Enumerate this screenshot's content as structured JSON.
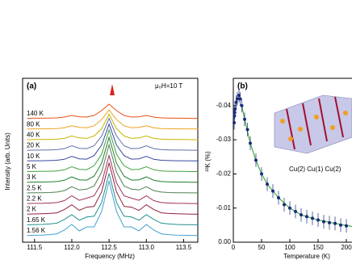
{
  "chart_data": [
    {
      "type": "line",
      "panel_label": "(a)",
      "annotation": "μ₀H=10 T",
      "x_label": "Frequency (MHz)",
      "y_label": "Intensity (arb. Units)",
      "xlim": [
        111.34,
        113.69
      ],
      "xticks": [
        111.5,
        {
          "value": 112.0,
          "label": "112.0"
        },
        112.5,
        {
          "value": 113.0,
          "label": "113.0"
        },
        113.5
      ],
      "x": [
        111.4,
        111.5,
        111.6,
        111.7,
        111.8,
        111.9,
        112.0,
        112.1,
        112.2,
        112.3,
        112.4,
        112.5,
        112.6,
        112.7,
        112.8,
        112.9,
        113.0,
        113.1,
        113.2,
        113.3,
        113.4,
        113.5,
        113.6,
        113.7
      ],
      "series": [
        {
          "name": "140 K",
          "color": "#e8501a",
          "values": [
            0.02,
            0.03,
            0.03,
            0.04,
            0.05,
            0.1,
            0.2,
            0.12,
            0.1,
            0.2,
            0.5,
            0.9,
            0.5,
            0.2,
            0.1,
            0.12,
            0.2,
            0.1,
            0.05,
            0.04,
            0.03,
            0.03,
            0.02,
            0.02
          ]
        },
        {
          "name": "80 K",
          "color": "#f0a020",
          "values": [
            0.02,
            0.03,
            0.03,
            0.04,
            0.05,
            0.1,
            0.22,
            0.12,
            0.1,
            0.22,
            0.6,
            1.2,
            0.6,
            0.22,
            0.1,
            0.12,
            0.22,
            0.1,
            0.05,
            0.04,
            0.03,
            0.03,
            0.02,
            0.02
          ]
        },
        {
          "name": "40 K",
          "color": "#c8b400",
          "values": [
            0.02,
            0.03,
            0.03,
            0.04,
            0.05,
            0.1,
            0.25,
            0.13,
            0.1,
            0.25,
            0.7,
            1.6,
            0.7,
            0.25,
            0.1,
            0.13,
            0.25,
            0.1,
            0.05,
            0.04,
            0.03,
            0.03,
            0.02,
            0.02
          ]
        },
        {
          "name": "20 K",
          "color": "#6070a8",
          "values": [
            0.02,
            0.03,
            0.03,
            0.04,
            0.06,
            0.12,
            0.3,
            0.14,
            0.12,
            0.3,
            0.9,
            2.0,
            0.9,
            0.3,
            0.12,
            0.14,
            0.3,
            0.12,
            0.06,
            0.04,
            0.03,
            0.03,
            0.02,
            0.02
          ]
        },
        {
          "name": "10 K",
          "color": "#3848a0",
          "values": [
            0.02,
            0.03,
            0.03,
            0.04,
            0.06,
            0.12,
            0.3,
            0.15,
            0.13,
            0.35,
            1.0,
            2.3,
            1.0,
            0.35,
            0.13,
            0.15,
            0.3,
            0.12,
            0.06,
            0.04,
            0.03,
            0.03,
            0.02,
            0.02
          ]
        },
        {
          "name": "5 K",
          "color": "#40a040",
          "values": [
            0.02,
            0.03,
            0.03,
            0.04,
            0.06,
            0.13,
            0.32,
            0.16,
            0.14,
            0.38,
            1.1,
            2.6,
            1.1,
            0.38,
            0.14,
            0.16,
            0.32,
            0.13,
            0.06,
            0.04,
            0.03,
            0.03,
            0.02,
            0.02
          ]
        },
        {
          "name": "3 K",
          "color": "#208030",
          "values": [
            0.02,
            0.03,
            0.03,
            0.04,
            0.06,
            0.14,
            0.35,
            0.17,
            0.15,
            0.4,
            1.2,
            2.8,
            1.2,
            0.4,
            0.15,
            0.17,
            0.35,
            0.14,
            0.06,
            0.04,
            0.03,
            0.03,
            0.02,
            0.02
          ]
        },
        {
          "name": "2.5 K",
          "color": "#508050",
          "values": [
            0.02,
            0.03,
            0.03,
            0.04,
            0.07,
            0.16,
            0.4,
            0.2,
            0.25,
            0.45,
            1.3,
            3.0,
            1.3,
            0.45,
            0.25,
            0.2,
            0.4,
            0.16,
            0.07,
            0.04,
            0.03,
            0.03,
            0.02,
            0.02
          ]
        },
        {
          "name": "2.2 K",
          "color": "#a03060",
          "values": [
            0.02,
            0.03,
            0.03,
            0.05,
            0.08,
            0.2,
            0.5,
            0.22,
            0.35,
            0.5,
            1.3,
            3.0,
            1.3,
            0.5,
            0.35,
            0.22,
            0.5,
            0.2,
            0.08,
            0.05,
            0.03,
            0.03,
            0.02,
            0.02
          ]
        },
        {
          "name": "2 K",
          "color": "#902040",
          "values": [
            0.02,
            0.03,
            0.04,
            0.06,
            0.1,
            0.3,
            0.6,
            0.25,
            0.45,
            0.5,
            1.4,
            3.2,
            1.4,
            0.5,
            0.45,
            0.25,
            0.6,
            0.3,
            0.1,
            0.06,
            0.04,
            0.03,
            0.02,
            0.02
          ]
        },
        {
          "name": "1.65 K",
          "color": "#209090",
          "values": [
            0.02,
            0.03,
            0.04,
            0.07,
            0.12,
            0.35,
            0.65,
            0.3,
            0.5,
            0.55,
            1.4,
            3.2,
            1.4,
            0.55,
            0.5,
            0.3,
            0.65,
            0.35,
            0.12,
            0.07,
            0.04,
            0.03,
            0.02,
            0.02
          ]
        },
        {
          "name": "1.56 K",
          "color": "#40a0d0",
          "values": [
            0.02,
            0.03,
            0.04,
            0.07,
            0.12,
            0.35,
            0.7,
            0.3,
            0.55,
            0.55,
            1.5,
            3.4,
            1.5,
            0.55,
            0.55,
            0.3,
            0.7,
            0.35,
            0.12,
            0.07,
            0.04,
            0.03,
            0.02,
            0.02
          ]
        }
      ]
    },
    {
      "type": "scatter",
      "panel_label": "(b)",
      "inset_label": "Cu(2) Cu(1) Cu(2)",
      "x_label": "Temperature (K)",
      "y_label": "²³K (%)",
      "xlim": [
        0,
        210
      ],
      "xticks": [
        0,
        50,
        100,
        150,
        200
      ],
      "ylim": [
        0,
        -0.048
      ],
      "yticks": [
        {
          "value": -0.04,
          "label": "-0.04"
        },
        {
          "value": -0.03,
          "label": "-0.03"
        },
        {
          "value": -0.02,
          "label": "-0.02"
        },
        {
          "value": -0.01,
          "label": "-0.01"
        },
        {
          "value": 0,
          "label": "0.00"
        }
      ],
      "color": "#1a2a7a",
      "x": [
        1.5,
        2,
        2.5,
        3,
        5,
        7,
        10,
        12,
        15,
        20,
        25,
        30,
        40,
        50,
        60,
        70,
        80,
        90,
        100,
        110,
        120,
        130,
        140,
        150,
        160,
        170,
        180,
        190,
        200
      ],
      "values": [
        -0.035,
        -0.037,
        -0.038,
        -0.039,
        -0.041,
        -0.042,
        -0.043,
        -0.042,
        -0.04,
        -0.036,
        -0.033,
        -0.029,
        -0.024,
        -0.02,
        -0.017,
        -0.015,
        -0.013,
        -0.011,
        -0.01,
        -0.009,
        -0.008,
        -0.0075,
        -0.007,
        -0.0065,
        -0.006,
        -0.0057,
        -0.0055,
        -0.005,
        -0.0048
      ],
      "errors": [
        0.002,
        0.002,
        0.002,
        0.002,
        0.002,
        0.002,
        0.002,
        0.002,
        0.002,
        0.002,
        0.002,
        0.002,
        0.002,
        0.002,
        0.002,
        0.002,
        0.002,
        0.002,
        0.002,
        0.002,
        0.002,
        0.002,
        0.002,
        0.002,
        0.002,
        0.002,
        0.002,
        0.002,
        0.002
      ],
      "fit": {
        "color": "#40b040",
        "x": [
          15,
          20,
          30,
          40,
          50,
          60,
          80,
          100,
          120,
          150,
          180,
          210
        ],
        "values": [
          -0.04,
          -0.036,
          -0.029,
          -0.024,
          -0.02,
          -0.017,
          -0.013,
          -0.01,
          -0.008,
          -0.0065,
          -0.0055,
          -0.0046
        ]
      }
    }
  ]
}
